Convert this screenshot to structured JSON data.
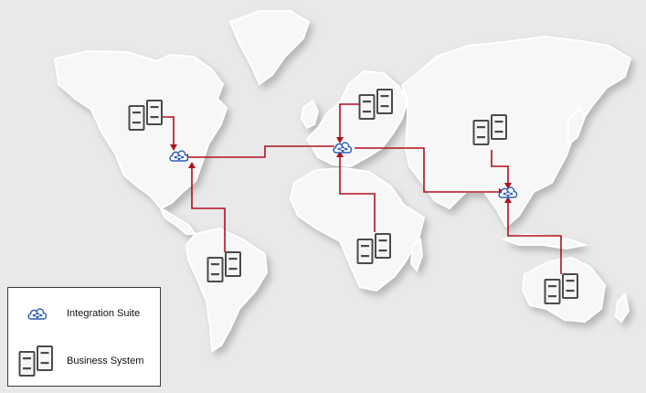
{
  "legend": {
    "integration_label": "Integration Suite",
    "business_label": "Business System"
  },
  "colors": {
    "link": "#b0111c",
    "cloud": "#2e5fb8",
    "server": "#4a4a4a",
    "land": "#f7f7f8",
    "ocean": "#e9e9ea"
  },
  "icons": {
    "integration": "cloud-network-icon",
    "business": "server-pair-icon"
  },
  "hubs": [
    "north-america",
    "europe",
    "southeast-asia"
  ],
  "business_systems": [
    "north-america",
    "northern-europe",
    "east-asia",
    "south-america",
    "africa",
    "australia"
  ]
}
